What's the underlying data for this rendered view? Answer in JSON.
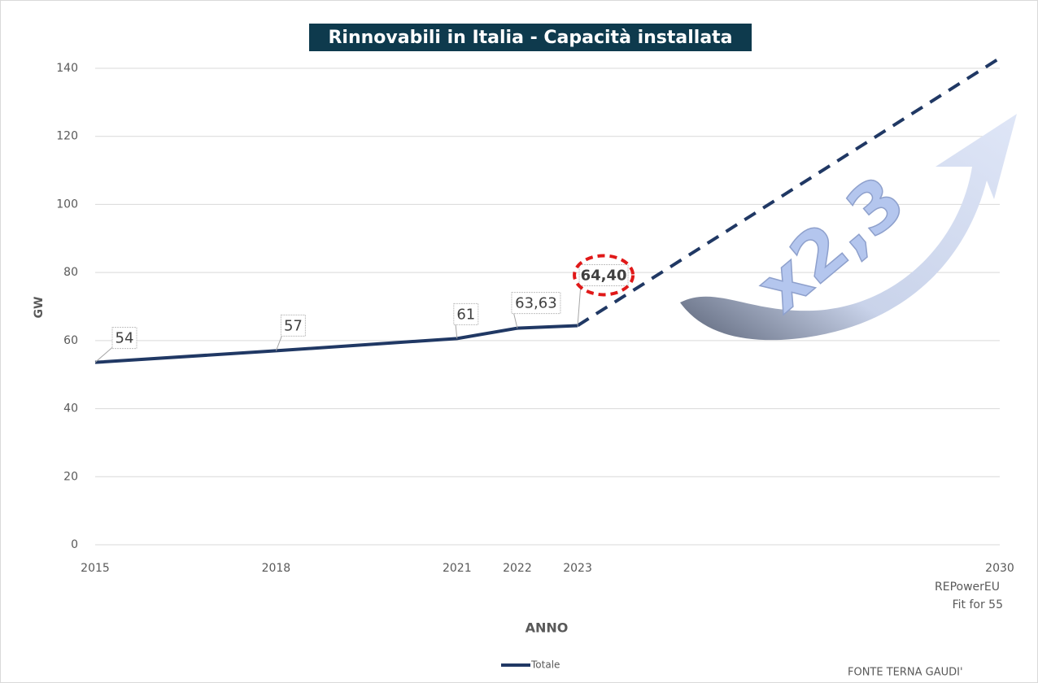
{
  "chart_data": {
    "type": "line",
    "title": "Rinnovabili in Italia - Capacità installata",
    "y_label": "GW",
    "x_label": "ANNO",
    "x": [
      2015,
      2018,
      2021,
      2022,
      2023,
      2030
    ],
    "xlim": [
      2015,
      2030
    ],
    "xticks": [
      2015,
      2018,
      2021,
      2022,
      2023,
      2030
    ],
    "ylim": [
      0,
      140
    ],
    "yticks": [
      0,
      20,
      40,
      60,
      80,
      100,
      120,
      140
    ],
    "grid": true,
    "series": [
      {
        "name": "Totale",
        "color": "#203864",
        "values": [
          53.6,
          57,
          60.6,
          63.63,
          64.4,
          null
        ],
        "value_labels": [
          "54",
          "57",
          "61",
          "63,63",
          "64,40",
          null
        ]
      },
      {
        "color": "#203864",
        "dashed": true,
        "values": [
          null,
          null,
          null,
          null,
          64.4,
          143
        ]
      }
    ],
    "annotations": [
      "REPowerEU",
      "Fit for 55",
      "x2,3",
      "FONTE TERNA GAUDI'"
    ]
  }
}
